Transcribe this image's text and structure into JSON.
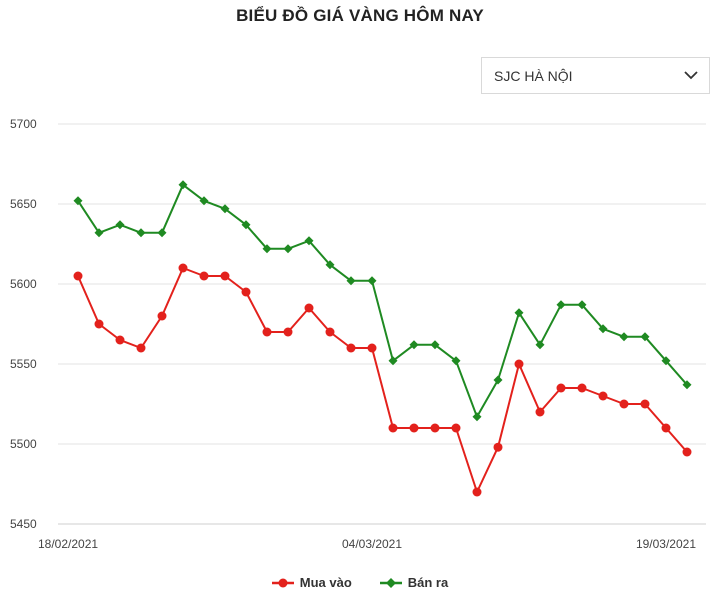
{
  "title": "BIỂU ĐỒ GIÁ VÀNG HÔM NAY",
  "location_select": {
    "selected": "SJC HÀ NỘI"
  },
  "colors": {
    "buy": "#e3211c",
    "sell": "#1f8a22",
    "grid": "#e3e3e3"
  },
  "chart_data": {
    "type": "line",
    "title": "BIỂU ĐỒ GIÁ VÀNG HÔM NAY",
    "xlabel": "",
    "ylabel": "",
    "ylim": [
      5450,
      5700
    ],
    "yticks": [
      5450,
      5500,
      5550,
      5600,
      5650,
      5700
    ],
    "grid": true,
    "legend_position": "bottom",
    "x_tick_labels": [
      "18/02/2021",
      "04/03/2021",
      "19/03/2021"
    ],
    "x_tick_positions": [
      0,
      14,
      30
    ],
    "series": [
      {
        "name": "Mua vào",
        "marker": "circle",
        "values": [
          5605,
          5575,
          5565,
          5560,
          5580,
          5610,
          5605,
          5605,
          5595,
          5570,
          5570,
          5585,
          5570,
          5560,
          5560,
          5510,
          5510,
          5510,
          5510,
          5470,
          5498,
          5550,
          5520,
          5535,
          5535,
          5530,
          5525,
          5525,
          5510,
          5495
        ]
      },
      {
        "name": "Bán ra",
        "marker": "diamond",
        "values": [
          5652,
          5632,
          5637,
          5632,
          5632,
          5662,
          5652,
          5647,
          5637,
          5622,
          5622,
          5627,
          5612,
          5602,
          5602,
          5552,
          5562,
          5562,
          5552,
          5517,
          5540,
          5582,
          5562,
          5587,
          5587,
          5572,
          5567,
          5567,
          5552,
          5537
        ]
      }
    ]
  }
}
